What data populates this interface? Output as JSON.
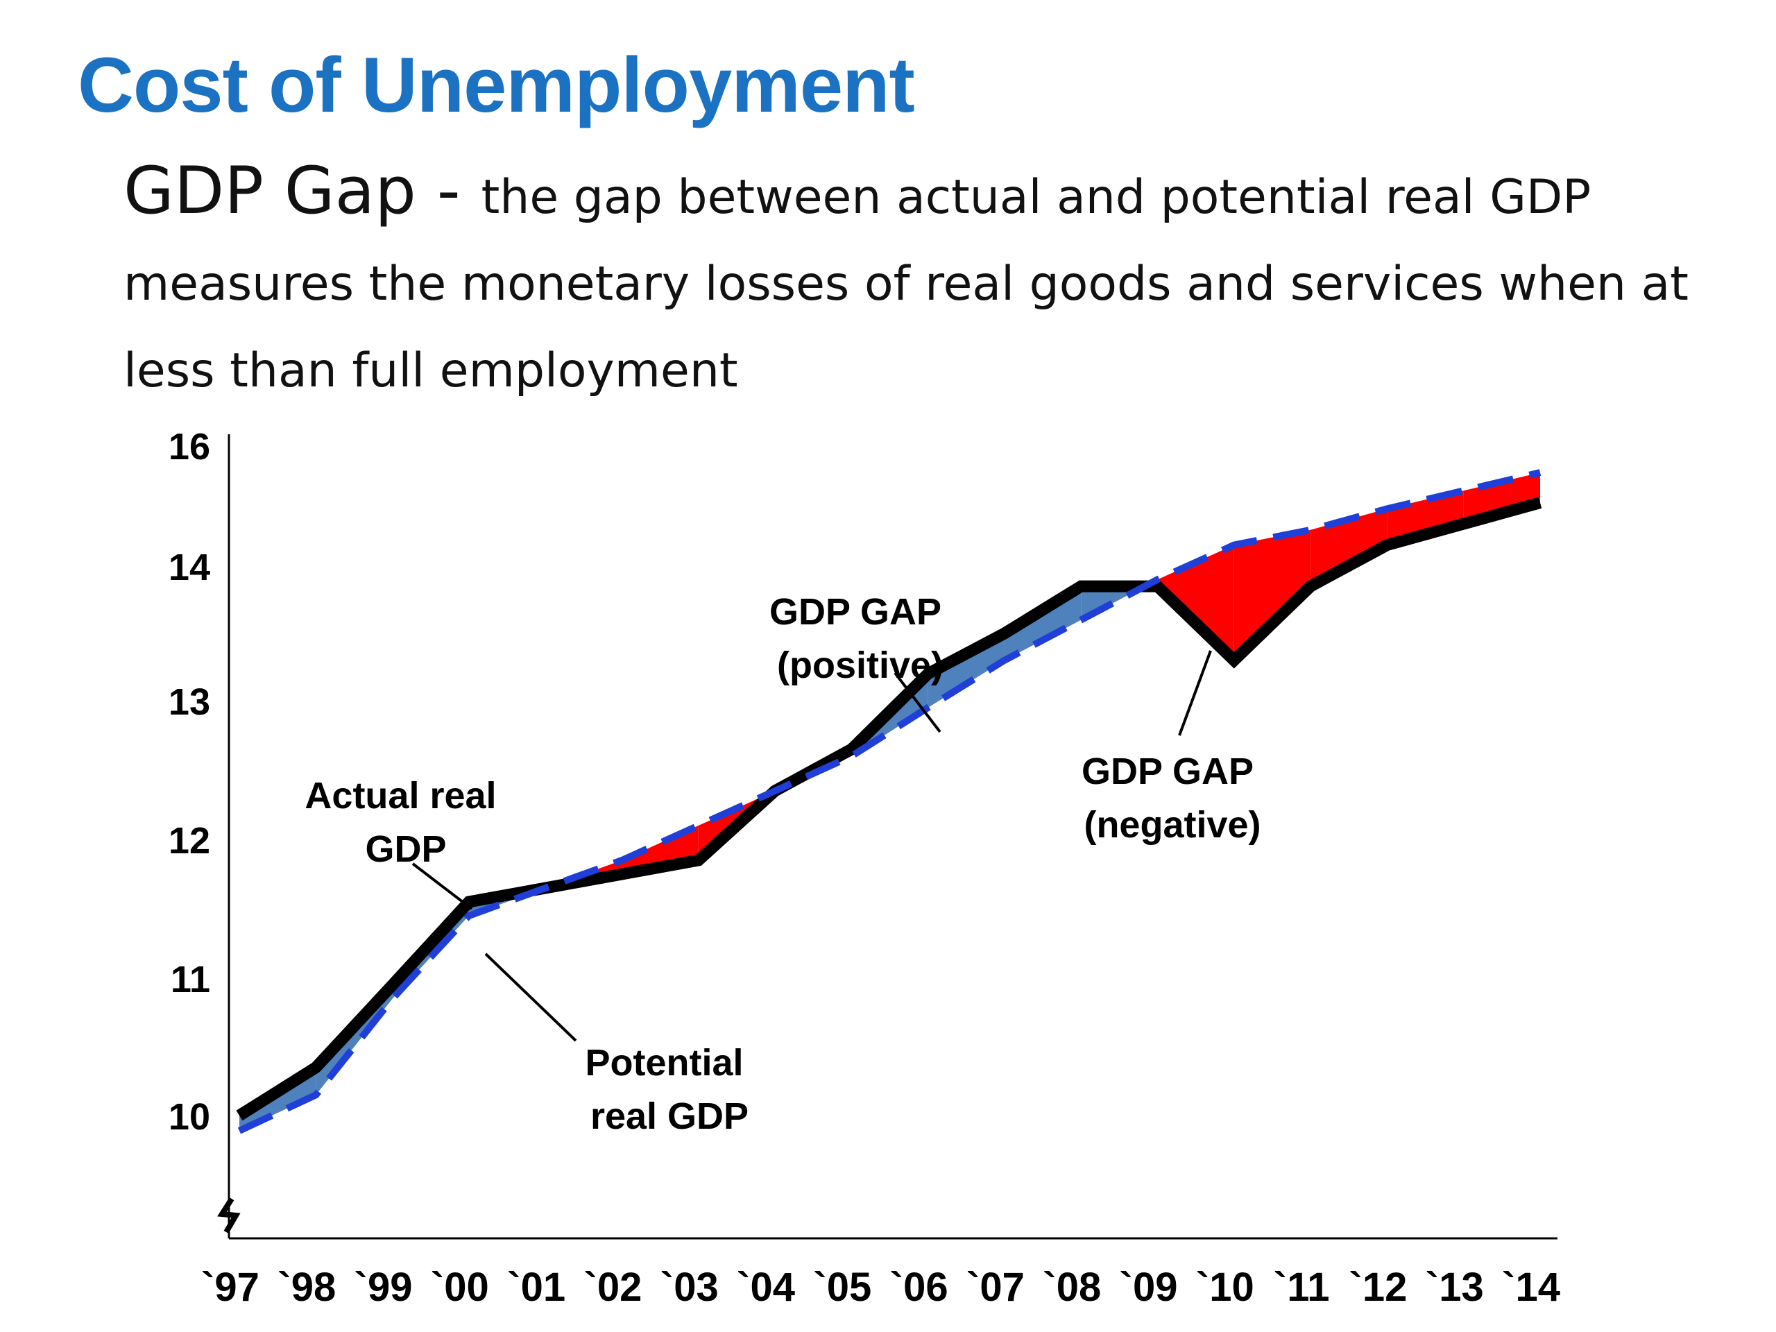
{
  "slide": {
    "title": "Cost of Unemployment",
    "term": "GDP Gap",
    "separator": " - ",
    "definition": "the gap between actual and potential real GDP measures the monetary losses of real goods and services when at less than full employment"
  },
  "chart_data": {
    "type": "line",
    "categories": [
      "`97",
      "`98",
      "`99",
      "`00",
      "`01",
      "`02",
      "`03",
      "`04",
      "`05",
      "`06",
      "`07",
      "`08",
      "`09",
      "`10",
      "`11",
      "`12",
      "`13",
      "`14"
    ],
    "y_ticks": [
      10,
      11,
      12,
      13,
      14,
      16
    ],
    "series": [
      {
        "key": "actual",
        "values": [
          10.0,
          10.35,
          10.95,
          11.55,
          11.65,
          11.75,
          11.85,
          12.35,
          12.65,
          13.2,
          13.5,
          13.85,
          13.85,
          13.3,
          13.85,
          14.35,
          14.7,
          15.05
        ],
        "color": "#000000",
        "style": "solid"
      },
      {
        "key": "potential",
        "values": [
          9.85,
          10.15,
          10.85,
          11.45,
          11.65,
          11.85,
          12.1,
          12.35,
          12.6,
          12.95,
          13.3,
          13.6,
          13.9,
          14.35,
          14.6,
          14.95,
          15.25,
          15.55
        ],
        "color": "#1f3fd8",
        "style": "dashed"
      }
    ],
    "gap_colors": {
      "positive": "#4f81bd",
      "negative": "#ff0000"
    },
    "annotations": [
      {
        "text": [
          "Actual real",
          "GDP"
        ]
      },
      {
        "text": [
          "Potential",
          "real GDP"
        ]
      },
      {
        "text": [
          "GDP GAP",
          "(positive)"
        ]
      },
      {
        "text": [
          "GDP GAP",
          "(negative)"
        ]
      }
    ],
    "axis_break": true
  }
}
